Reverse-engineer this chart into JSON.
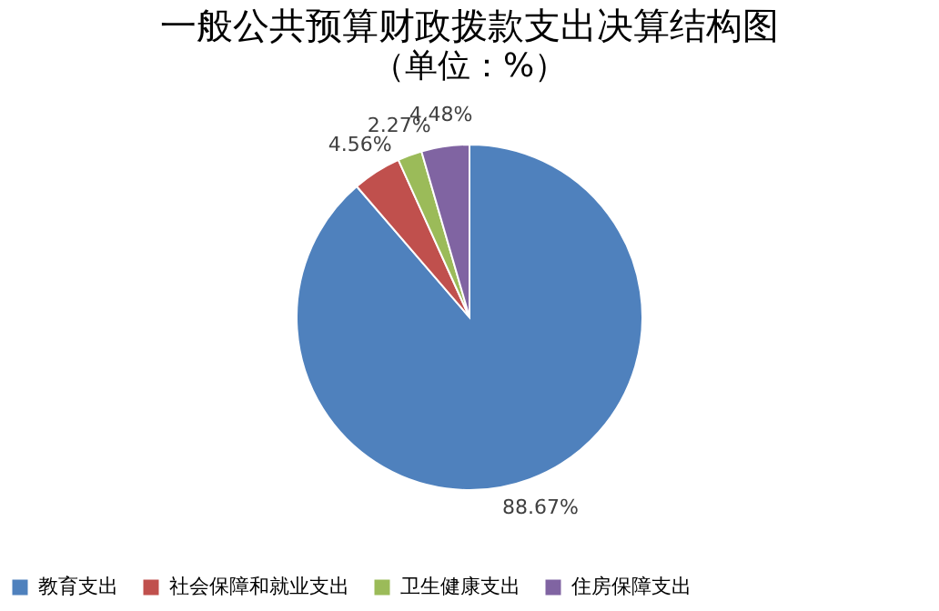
{
  "chart_data": {
    "type": "pie",
    "title": "一般公共预算财政拨款支出决算结构图",
    "subtitle": "（单位：%）",
    "categories": [
      "教育支出",
      "社会保障和就业支出",
      "卫生健康支出",
      "住房保障支出"
    ],
    "values": [
      88.67,
      4.56,
      2.27,
      4.48
    ],
    "value_labels": [
      "88.67%",
      "4.56%",
      "2.27%",
      "4.48%"
    ],
    "colors": [
      "#4f81bd",
      "#c0504d",
      "#9bbb59",
      "#8064a2"
    ],
    "legend": "bottom"
  }
}
